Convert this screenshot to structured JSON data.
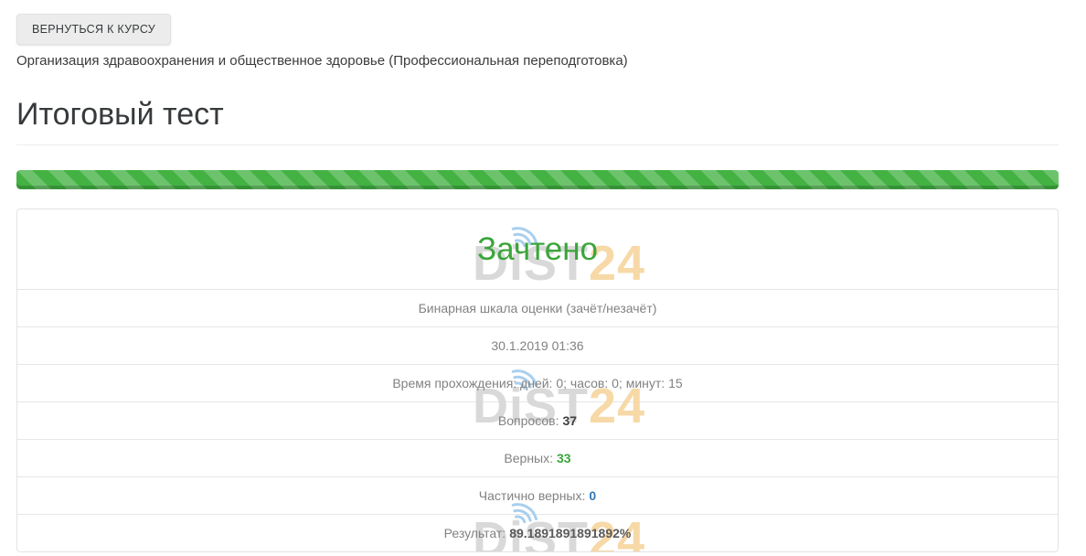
{
  "header": {
    "back_button_label": "ВЕРНУТЬСЯ К КУРСУ",
    "course_title": "Организация здравоохранения и общественное здоровье (Профессиональная переподготовка)",
    "page_title": "Итоговый тест"
  },
  "progress_bar": {
    "percent": 100,
    "striped": true
  },
  "result": {
    "status": "Зачтено",
    "rows": [
      {
        "label": "Бинарная шкала оценки (зачёт/незачёт)",
        "value": ""
      },
      {
        "label": "30.1.2019 01:36",
        "value": ""
      },
      {
        "label": "Время прохождения: дней: 0; часов: 0; минут: 15",
        "value": ""
      },
      {
        "label": "Вопросов:",
        "value": "37",
        "value_color": "dark"
      },
      {
        "label": "Верных:",
        "value": "33",
        "value_color": "green"
      },
      {
        "label": "Частично верных:",
        "value": "0",
        "value_color": "blue"
      },
      {
        "label": "Результат:",
        "value": "89.1891891891892%",
        "value_color": "gray"
      }
    ]
  },
  "watermark": {
    "icon": "wifi-icon",
    "text_gray": "DiST",
    "text_orange": "24"
  },
  "colors": {
    "success_green": "#3aa53a",
    "info_blue": "#337ab7",
    "progress_green": "#43b243",
    "watermark_gray": "#d9d9d9",
    "watermark_orange": "#f7d9a7",
    "watermark_wifi_blue": "#a9cfee"
  }
}
